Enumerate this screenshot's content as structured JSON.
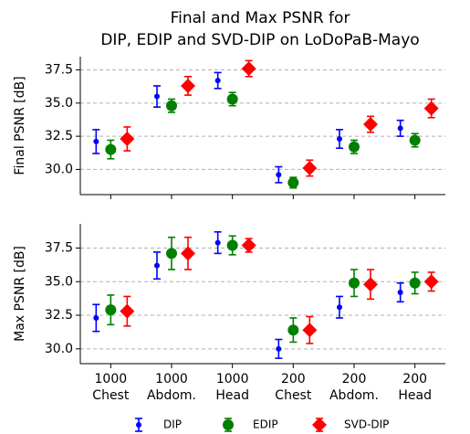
{
  "chart_data": [
    {
      "type": "errorbar",
      "title": [
        "Final and Max PSNR for",
        "DIP, EDIP and SVD-DIP on LoDoPaB-Mayo"
      ],
      "ylabel": "Final PSNR [dB]",
      "ylim": [
        28.1,
        38.5
      ],
      "yticks": [
        {
          "value": 30,
          "label": "30.0"
        },
        32.5,
        {
          "value": 35,
          "label": "35.0"
        },
        37.5
      ],
      "grid": true,
      "series": [
        {
          "name": "DIP",
          "color": "#0000ff",
          "marker": "small-circle",
          "values": [
            32.1,
            35.5,
            36.7,
            29.6,
            32.3,
            33.1
          ],
          "errors": [
            0.9,
            0.8,
            0.6,
            0.6,
            0.7,
            0.6
          ]
        },
        {
          "name": "EDIP",
          "color": "#008000",
          "marker": "circle",
          "values": [
            31.5,
            34.8,
            35.3,
            29.0,
            31.7,
            32.2
          ],
          "errors": [
            0.7,
            0.5,
            0.5,
            0.4,
            0.5,
            0.5
          ]
        },
        {
          "name": "SVD-DIP",
          "color": "#ff0000",
          "marker": "diamond",
          "values": [
            32.3,
            36.3,
            37.6,
            30.1,
            33.4,
            34.6
          ],
          "errors": [
            0.9,
            0.7,
            0.6,
            0.6,
            0.6,
            0.7
          ]
        }
      ]
    },
    {
      "type": "errorbar",
      "ylabel": "Max PSNR [dB]",
      "categories": [
        [
          "1000",
          "Chest"
        ],
        [
          "1000",
          "Abdom."
        ],
        [
          "1000",
          "Head"
        ],
        [
          "200",
          "Chest"
        ],
        [
          "200",
          "Abdom."
        ],
        [
          "200",
          "Head"
        ]
      ],
      "ylim": [
        28.9,
        39.3
      ],
      "yticks": [
        {
          "value": 30,
          "label": "30.0"
        },
        32.5,
        {
          "value": 35,
          "label": "35.0"
        },
        37.5
      ],
      "grid": true,
      "series": [
        {
          "name": "DIP",
          "color": "#0000ff",
          "marker": "small-circle",
          "values": [
            32.3,
            36.2,
            37.9,
            30.0,
            33.1,
            34.2
          ],
          "errors": [
            1.0,
            1.0,
            0.8,
            0.7,
            0.8,
            0.7
          ]
        },
        {
          "name": "EDIP",
          "color": "#008000",
          "marker": "circle",
          "values": [
            32.9,
            37.1,
            37.7,
            31.4,
            34.9,
            34.9
          ],
          "errors": [
            1.1,
            1.2,
            0.7,
            0.9,
            1.0,
            0.8
          ]
        },
        {
          "name": "SVD-DIP",
          "color": "#ff0000",
          "marker": "diamond",
          "values": [
            32.8,
            37.1,
            37.7,
            31.4,
            34.8,
            35.0
          ],
          "errors": [
            1.1,
            1.2,
            0.5,
            1.0,
            1.1,
            0.7
          ]
        }
      ]
    }
  ]
}
